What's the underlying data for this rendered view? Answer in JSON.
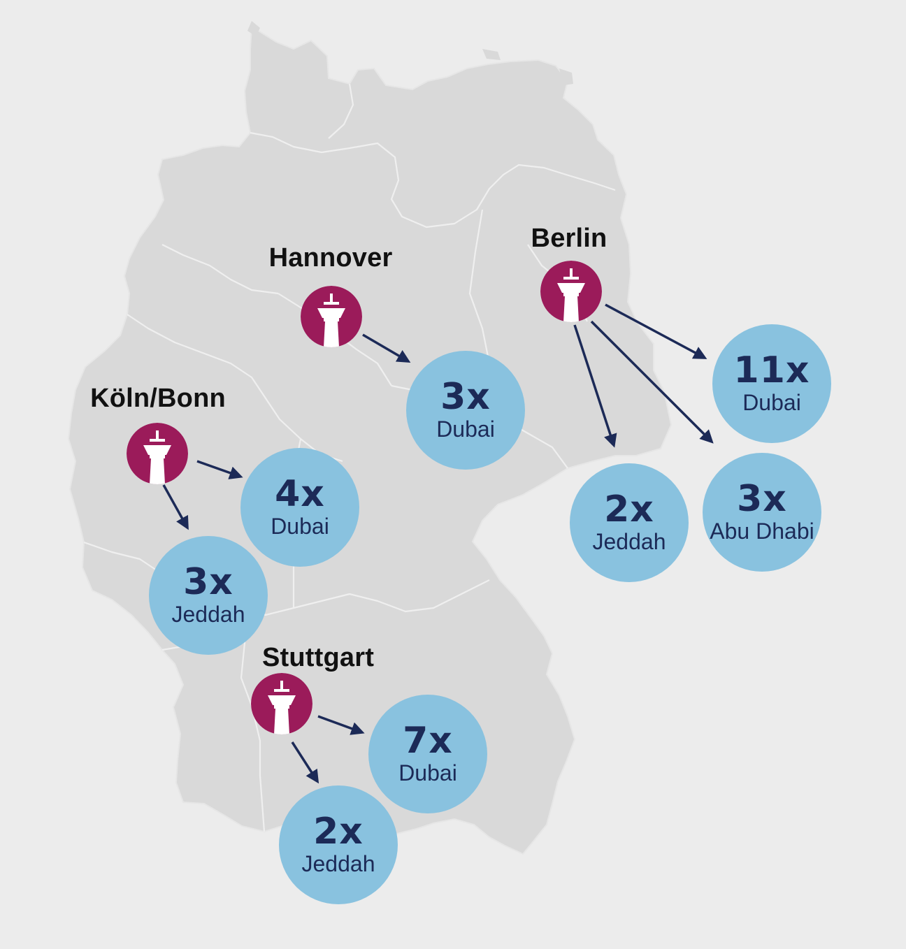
{
  "colors": {
    "background": "#ececec",
    "land": "#d9d9d9",
    "border": "#f2f2f2",
    "airport": "#9b1b5a",
    "bubble": "#89c2df",
    "text_dark": "#1c2a57",
    "arrow": "#1c2a57",
    "label": "#111111"
  },
  "icons": {
    "airport": "control-tower-icon"
  },
  "airports": [
    {
      "name": "Hannover",
      "routes": [
        {
          "count": "3x",
          "destination": "Dubai"
        }
      ]
    },
    {
      "name": "Berlin",
      "routes": [
        {
          "count": "11x",
          "destination": "Dubai"
        },
        {
          "count": "2x",
          "destination": "Jeddah"
        },
        {
          "count": "3x",
          "destination": "Abu Dhabi"
        }
      ]
    },
    {
      "name": "Köln/Bonn",
      "routes": [
        {
          "count": "4x",
          "destination": "Dubai"
        },
        {
          "count": "3x",
          "destination": "Jeddah"
        }
      ]
    },
    {
      "name": "Stuttgart",
      "routes": [
        {
          "count": "7x",
          "destination": "Dubai"
        },
        {
          "count": "2x",
          "destination": "Jeddah"
        }
      ]
    }
  ]
}
